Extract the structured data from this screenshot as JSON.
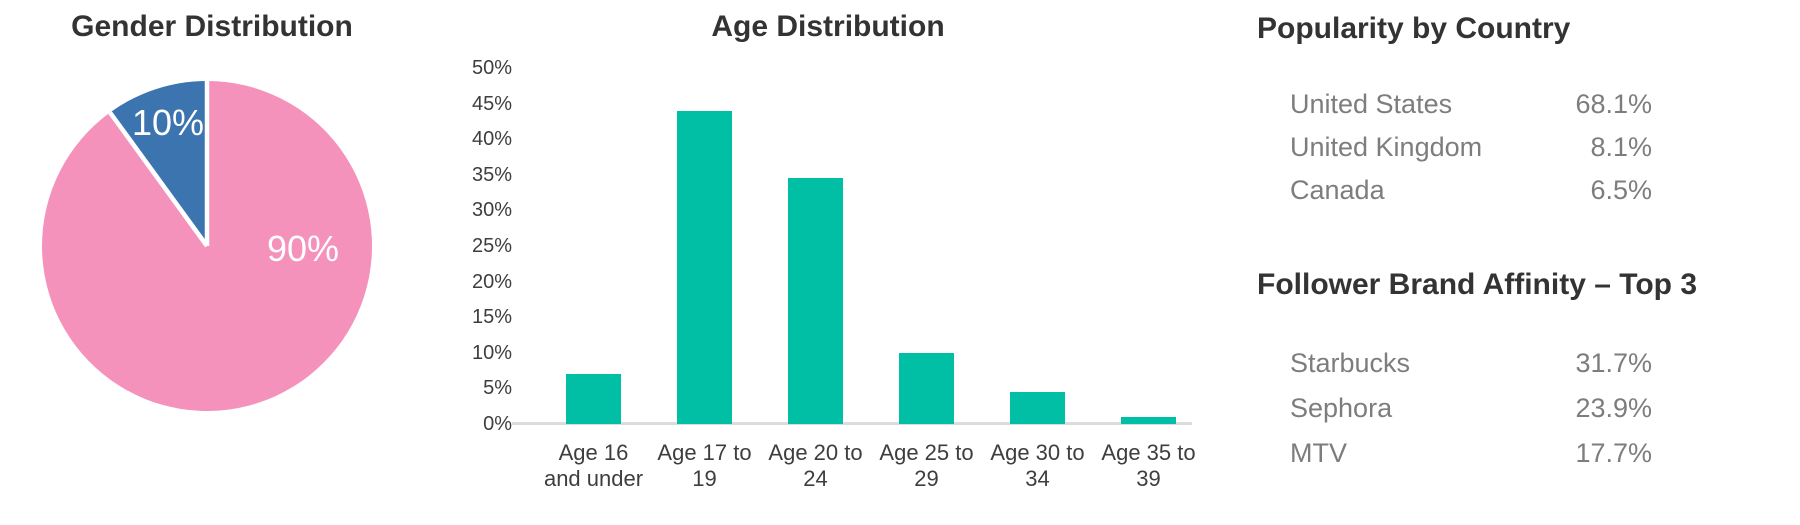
{
  "colors": {
    "background": "#FFFFFF",
    "title_text": "#333333",
    "axis_text": "#3E3E3E",
    "row_text": "#7D7D7D",
    "pie_female": "#F492BC",
    "pie_male": "#3B74AF",
    "bar_teal": "#00BFA4",
    "axis_line": "#DCDCDC",
    "pie_label_text": "#FFFFFF"
  },
  "chart_data": [
    {
      "type": "pie",
      "title": "Gender Distribution",
      "slices": [
        {
          "label": "90%",
          "value": 90,
          "color": "#F492BC"
        },
        {
          "label": "10%",
          "value": 10,
          "color": "#3B74AF"
        }
      ],
      "start_angle_deg": 0,
      "direction": "clockwise",
      "slice_gap_color": "#FFFFFF",
      "label_color": "#FFFFFF"
    },
    {
      "type": "bar",
      "title": "Age Distribution",
      "categories": [
        "Age 16 and under",
        "Age 17 to 19",
        "Age 20 to 24",
        "Age 25 to 29",
        "Age 30 to 34",
        "Age 35 to 39"
      ],
      "category_lines": [
        [
          "Age 16",
          "and under"
        ],
        [
          "Age 17 to",
          "19"
        ],
        [
          "Age 20 to",
          "24"
        ],
        [
          "Age 25 to",
          "29"
        ],
        [
          "Age 30 to",
          "34"
        ],
        [
          "Age 35 to",
          "39"
        ]
      ],
      "values": [
        7,
        44,
        34.5,
        10,
        4.5,
        1
      ],
      "unit": "%",
      "ylim": [
        0,
        50
      ],
      "ytick_step": 5,
      "yticks": [
        "0%",
        "5%",
        "10%",
        "15%",
        "20%",
        "25%",
        "30%",
        "35%",
        "40%",
        "45%",
        "50%"
      ],
      "bar_color": "#00BFA4",
      "grid": false,
      "legend": "none"
    },
    {
      "type": "table",
      "title": "Popularity by Country",
      "rows": [
        {
          "label": "United States",
          "value": "68.1%"
        },
        {
          "label": "United Kingdom",
          "value": "8.1%"
        },
        {
          "label": "Canada",
          "value": "6.5%"
        }
      ]
    },
    {
      "type": "table",
      "title": "Follower Brand Affinity – Top 3",
      "rows": [
        {
          "label": "Starbucks",
          "value": "31.7%"
        },
        {
          "label": "Sephora",
          "value": "23.9%"
        },
        {
          "label": "MTV",
          "value": "17.7%"
        }
      ]
    }
  ]
}
